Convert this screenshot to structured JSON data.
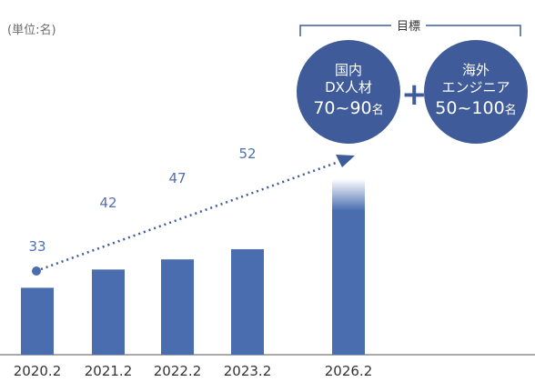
{
  "unit_label": "(単位:名)",
  "target_label": "目標",
  "circle_domestic": {
    "line1": "国内",
    "line2": "DX人材",
    "value": "70~90",
    "unit": "名"
  },
  "plus_sign": "+",
  "circle_overseas": {
    "line1": "海外",
    "line2": "エンジニア",
    "value": "50~100",
    "unit": "名"
  },
  "colors": {
    "bar": "#4a6db0",
    "circle": "#3f5b99",
    "value_text": "#5070b0",
    "axis": "#555555"
  },
  "chart_data": {
    "type": "bar",
    "categories": [
      "2020.2",
      "2021.2",
      "2022.2",
      "2023.2",
      "2026.2"
    ],
    "values": [
      33,
      42,
      47,
      52,
      null
    ],
    "value_labels": [
      "33",
      "42",
      "47",
      "52",
      ""
    ],
    "target_range": [
      70,
      90
    ],
    "grid": false,
    "axes_visible": "x-baseline only"
  }
}
